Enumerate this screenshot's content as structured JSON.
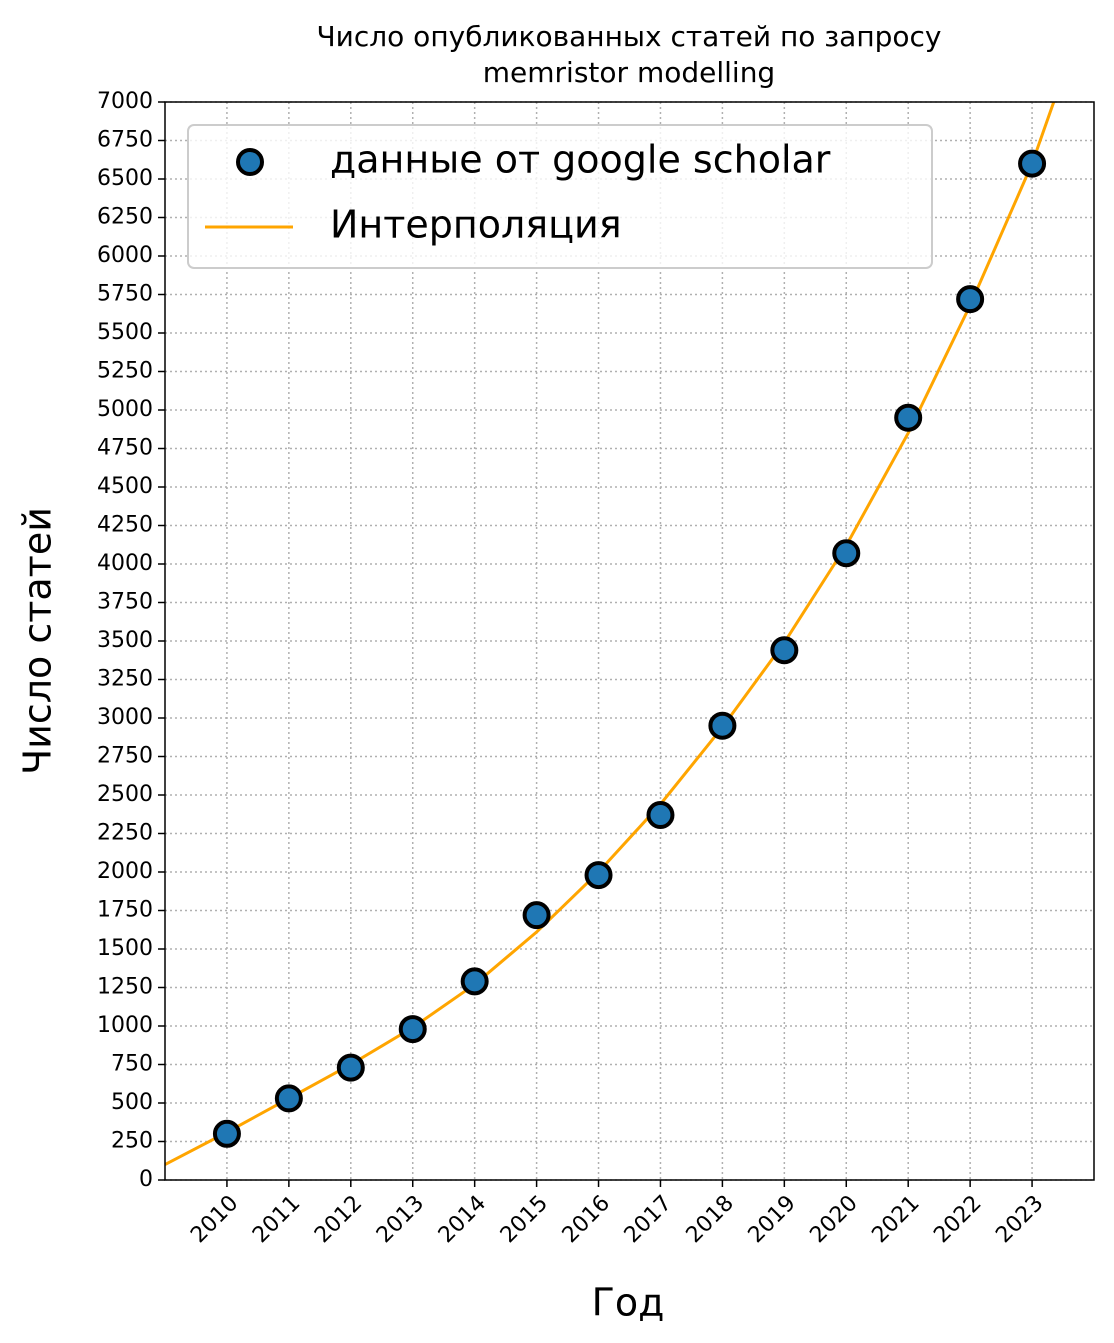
{
  "chart_data": {
    "type": "scatter",
    "title": [
      "Число опубликованных статей по запросу",
      "memristor modelling"
    ],
    "xlabel": "Год",
    "ylabel": "Число статей",
    "xlim": [
      2009,
      2024
    ],
    "xticks": [
      2010,
      2011,
      2012,
      2013,
      2014,
      2015,
      2016,
      2017,
      2018,
      2019,
      2020,
      2021,
      2022,
      2023
    ],
    "ylim": [
      0,
      7000
    ],
    "yticks": [
      0,
      250,
      500,
      750,
      1000,
      1250,
      1500,
      1750,
      2000,
      2250,
      2500,
      2750,
      3000,
      3250,
      3500,
      3750,
      4000,
      4250,
      4500,
      4750,
      5000,
      5250,
      5500,
      5750,
      6000,
      6250,
      6500,
      6750,
      7000
    ],
    "grid": true,
    "legend": "upper left",
    "series": [
      {
        "name": "данные от google scholar",
        "type": "scatter",
        "color": "#1f77b4",
        "x": [
          2010,
          2011,
          2012,
          2013,
          2014,
          2015,
          2016,
          2017,
          2018,
          2019,
          2020,
          2021,
          2022,
          2023
        ],
        "values": [
          300,
          530,
          730,
          980,
          1290,
          1720,
          1980,
          2370,
          2950,
          3440,
          4070,
          4950,
          5720,
          6600
        ]
      },
      {
        "name": "Интерполяция",
        "type": "line",
        "color": "orange",
        "x": [
          2009,
          2010,
          2011,
          2012,
          2013,
          2014,
          2015,
          2016,
          2017,
          2018,
          2019,
          2020,
          2021,
          2022,
          2023,
          2023.35
        ],
        "values": [
          100,
          310,
          530,
          750,
          990,
          1270,
          1610,
          2000,
          2440,
          2940,
          3490,
          4120,
          4850,
          5680,
          6600,
          7000
        ]
      }
    ]
  }
}
